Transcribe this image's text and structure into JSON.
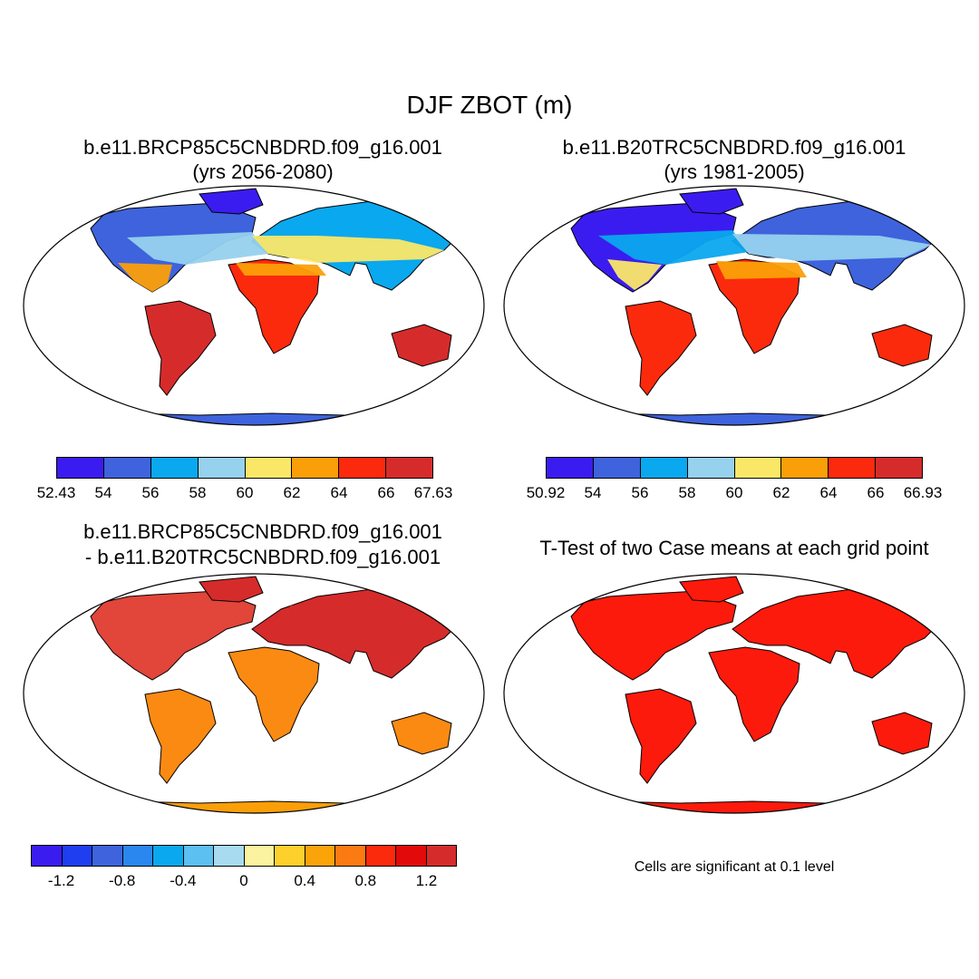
{
  "main_title": "DJF ZBOT (m)",
  "panels": {
    "tl": {
      "title_line1": "b.e11.BRCP85C5CNBDRD.f09_g16.001",
      "title_line2": "(yrs 2056-2080)"
    },
    "tr": {
      "title_line1": "b.e11.B20TRC5CNBDRD.f09_g16.001",
      "title_line2": "(yrs 1981-2005)"
    },
    "bl": {
      "title_line1": "b.e11.BRCP85C5CNBDRD.f09_g16.001",
      "title_line2": "- b.e11.B20TRC5CNBDRD.f09_g16.001"
    },
    "br": {
      "title_line1": "T-Test of two Case means at each grid point",
      "note": "Cells are significant at 0.1 level"
    }
  },
  "colorbars": {
    "tl": {
      "labels": [
        "52.43",
        "54",
        "56",
        "58",
        "60",
        "62",
        "64",
        "66",
        "67.63"
      ],
      "colors": [
        "#3b1cf0",
        "#3e63dc",
        "#0aa8ee",
        "#96d1ed",
        "#fbe767",
        "#fb9f08",
        "#fc2a0c",
        "#d62b2b"
      ]
    },
    "tr": {
      "labels": [
        "50.92",
        "54",
        "56",
        "58",
        "60",
        "62",
        "64",
        "66",
        "66.93"
      ],
      "colors": [
        "#3b1cf0",
        "#3e63dc",
        "#0aa8ee",
        "#96d1ed",
        "#fbe767",
        "#fb9f08",
        "#fc2a0c",
        "#d62b2b"
      ]
    },
    "bl": {
      "labels": [
        "-1.2",
        "-0.8",
        "-0.4",
        "0",
        "0.4",
        "0.8",
        "1.2"
      ],
      "colors": [
        "#3b1cf0",
        "#1f3ef0",
        "#3e63dc",
        "#2a87f0",
        "#0aa8ee",
        "#5cc0f0",
        "#a8daf0",
        "#fbf3a0",
        "#fdd02c",
        "#fba40a",
        "#fb7a12",
        "#fc2a0c",
        "#e20a0a",
        "#d62b2b"
      ]
    }
  }
}
